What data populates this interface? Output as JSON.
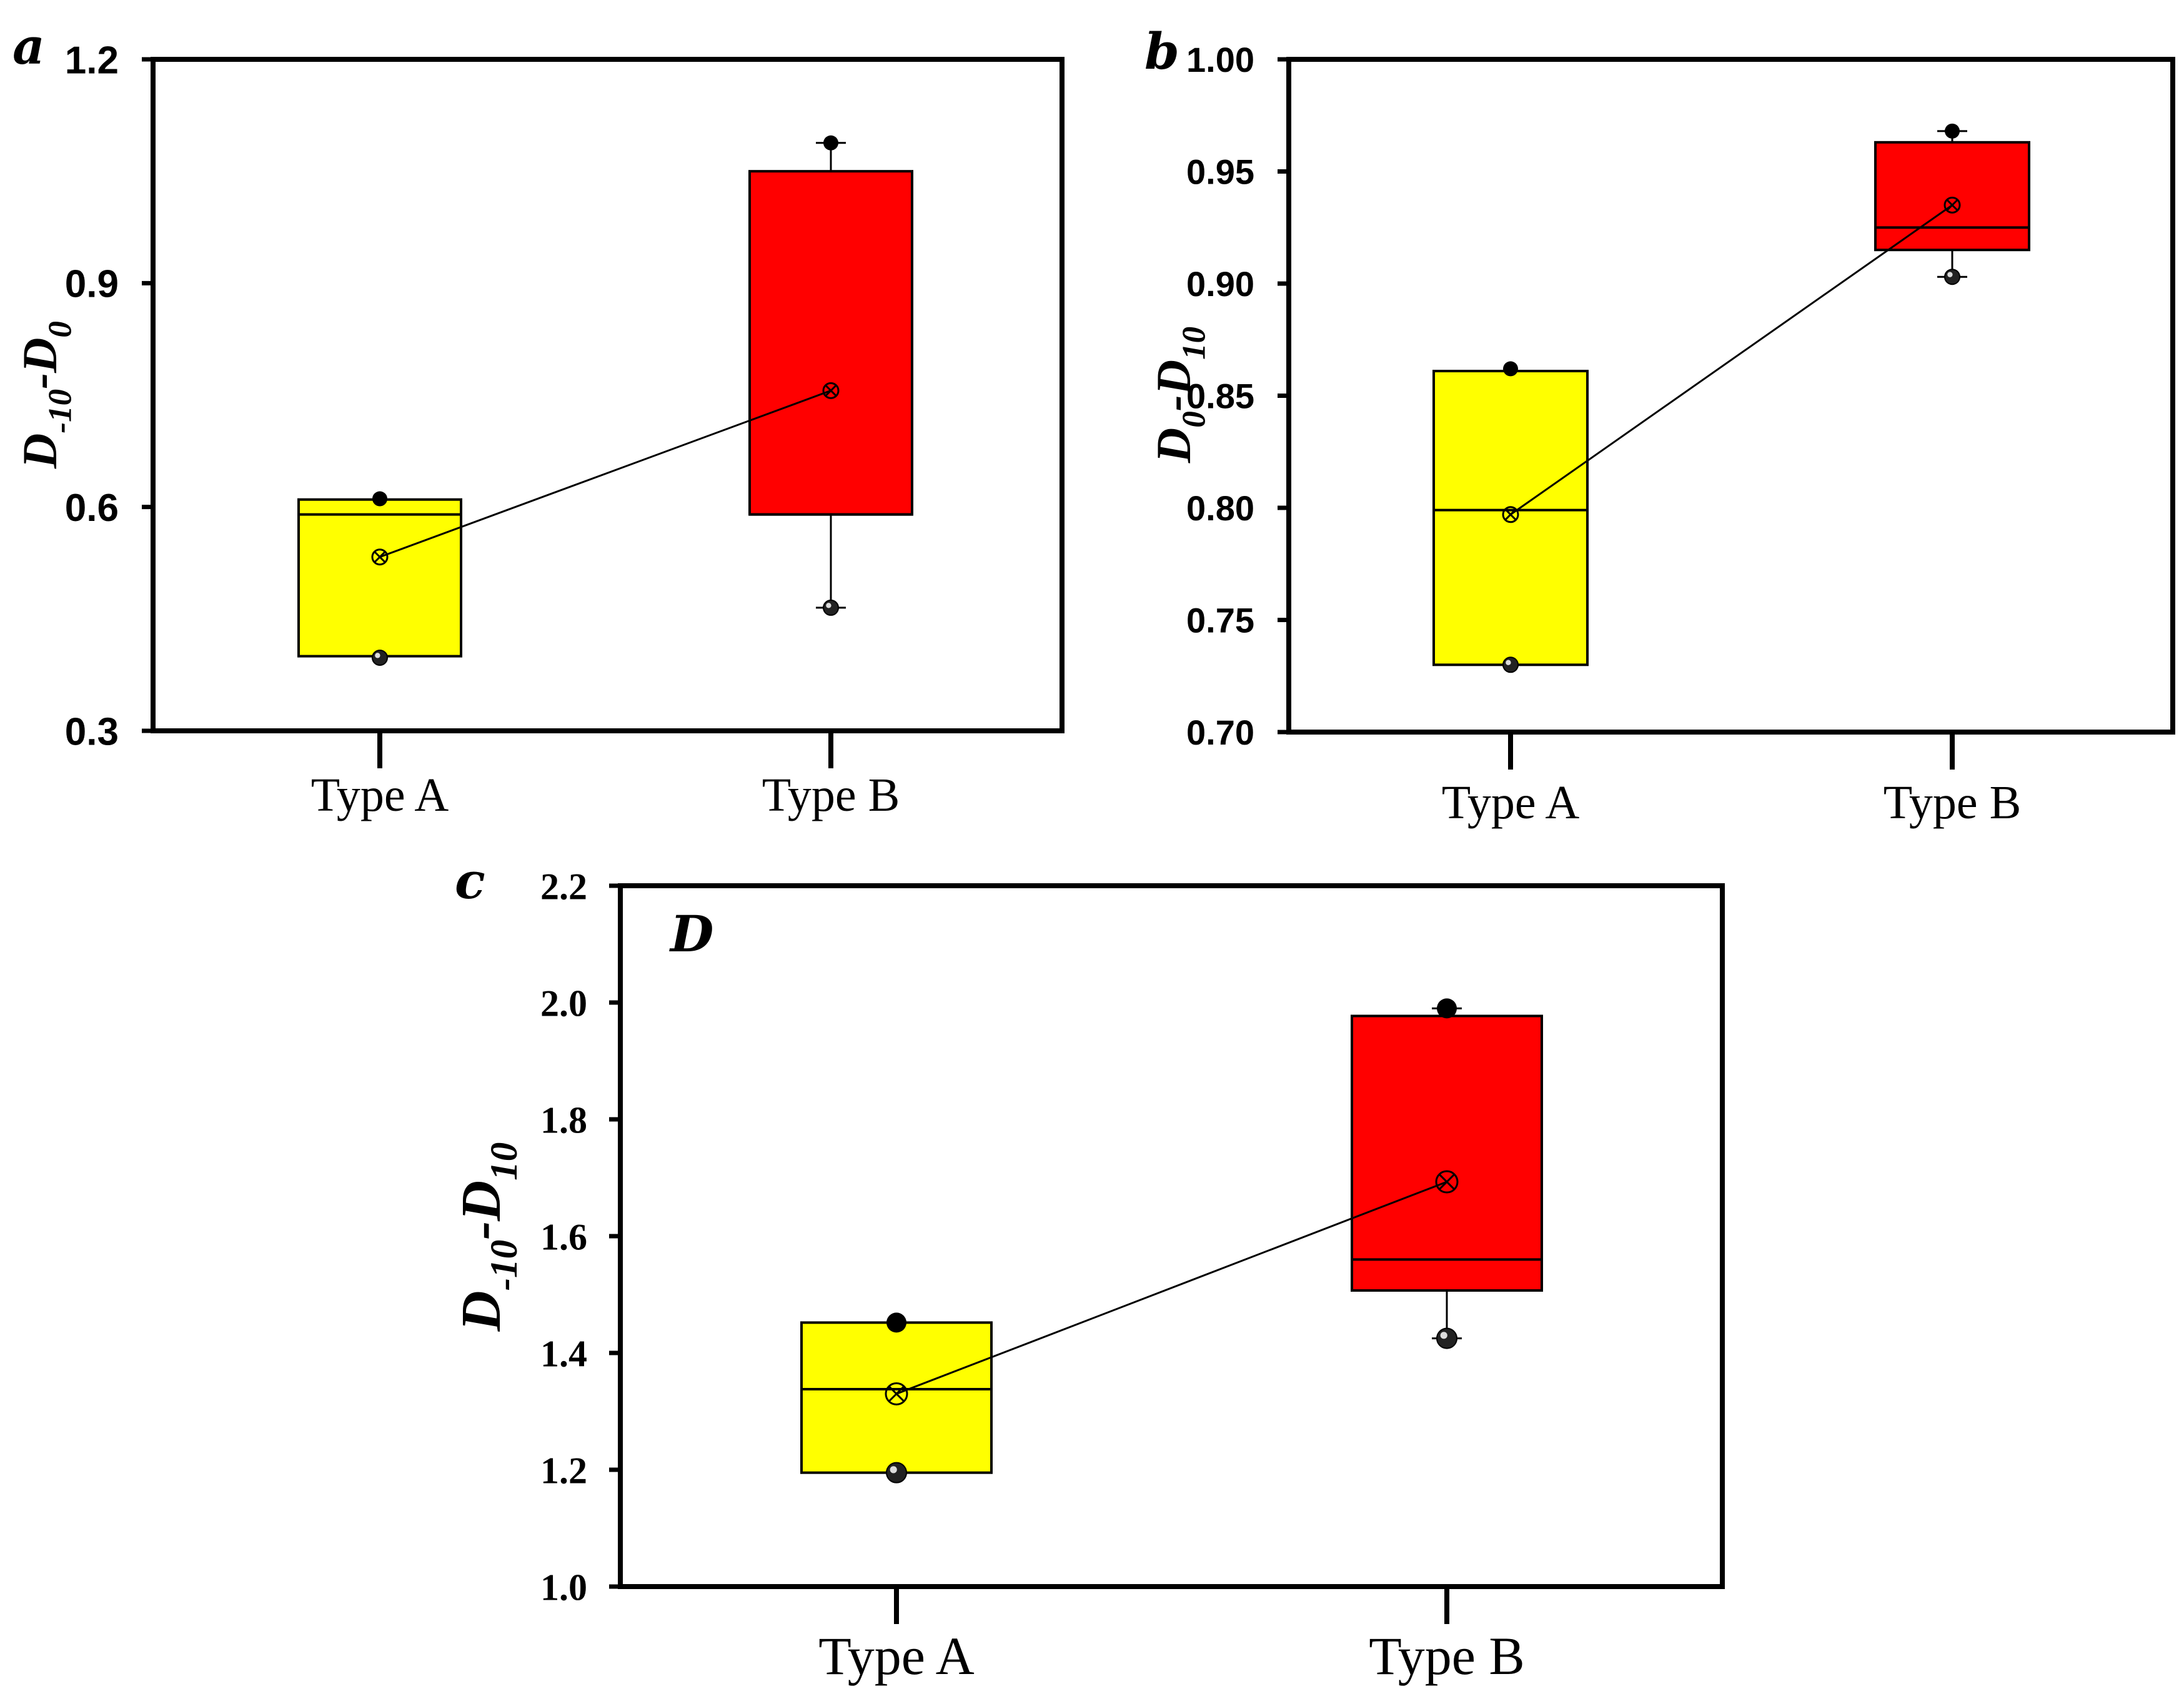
{
  "chart_data": [
    {
      "type": "box",
      "panel": "a",
      "ylabel": {
        "main": "D",
        "sub": "-10",
        "sep": "-",
        "main2": "D",
        "sub2": "0"
      },
      "ylim": [
        0.3,
        1.2
      ],
      "yticks": [
        "0.3",
        "0.6",
        "0.9",
        "1.2"
      ],
      "categories": [
        "Type A",
        "Type B"
      ],
      "boxes": [
        {
          "category": "Type A",
          "color": "#ffff00",
          "q1": 0.4,
          "median": 0.59,
          "q3": 0.61,
          "mean": 0.533,
          "whisker_low": 0.4,
          "whisker_high": 0.61,
          "min": 0.398,
          "max": 0.611
        },
        {
          "category": "Type B",
          "color": "#ff0000",
          "q1": 0.59,
          "median": 0.59,
          "q3": 1.05,
          "mean": 0.756,
          "whisker_low": 0.465,
          "whisker_high": 1.088,
          "min": 0.465,
          "max": 1.088
        }
      ]
    },
    {
      "type": "box",
      "panel": "b",
      "ylabel": {
        "main": "D",
        "sub": "0",
        "sep": "-",
        "main2": "D",
        "sub2": "10"
      },
      "ylim": [
        0.7,
        1.0
      ],
      "yticks": [
        "0.70",
        "0.75",
        "0.80",
        "0.85",
        "0.90",
        "0.95",
        "1.00"
      ],
      "categories": [
        "Type A",
        "Type B"
      ],
      "boxes": [
        {
          "category": "Type A",
          "color": "#ffff00",
          "q1": 0.73,
          "median": 0.799,
          "q3": 0.861,
          "mean": 0.797,
          "whisker_low": 0.73,
          "whisker_high": 0.861,
          "min": 0.73,
          "max": 0.862
        },
        {
          "category": "Type B",
          "color": "#ff0000",
          "q1": 0.915,
          "median": 0.925,
          "q3": 0.963,
          "mean": 0.935,
          "whisker_low": 0.903,
          "whisker_high": 0.968,
          "min": 0.903,
          "max": 0.968
        }
      ]
    },
    {
      "type": "box",
      "panel": "c",
      "annotation": "D",
      "ylabel": {
        "main": "D",
        "sub": "-10",
        "sep": "-",
        "main2": "D",
        "sub2": "10"
      },
      "ylim": [
        1.0,
        2.2
      ],
      "yticks": [
        "1.0",
        "1.2",
        "1.4",
        "1.6",
        "1.8",
        "2.0",
        "2.2"
      ],
      "categories": [
        "Type A",
        "Type B"
      ],
      "boxes": [
        {
          "category": "Type A",
          "color": "#ffff00",
          "q1": 1.195,
          "median": 1.338,
          "q3": 1.452,
          "mean": 1.33,
          "whisker_low": 1.195,
          "whisker_high": 1.452,
          "min": 1.195,
          "max": 1.452
        },
        {
          "category": "Type B",
          "color": "#ff0000",
          "q1": 1.507,
          "median": 1.56,
          "q3": 1.977,
          "mean": 1.693,
          "whisker_low": 1.425,
          "whisker_high": 1.99,
          "min": 1.425,
          "max": 1.99
        }
      ]
    }
  ]
}
